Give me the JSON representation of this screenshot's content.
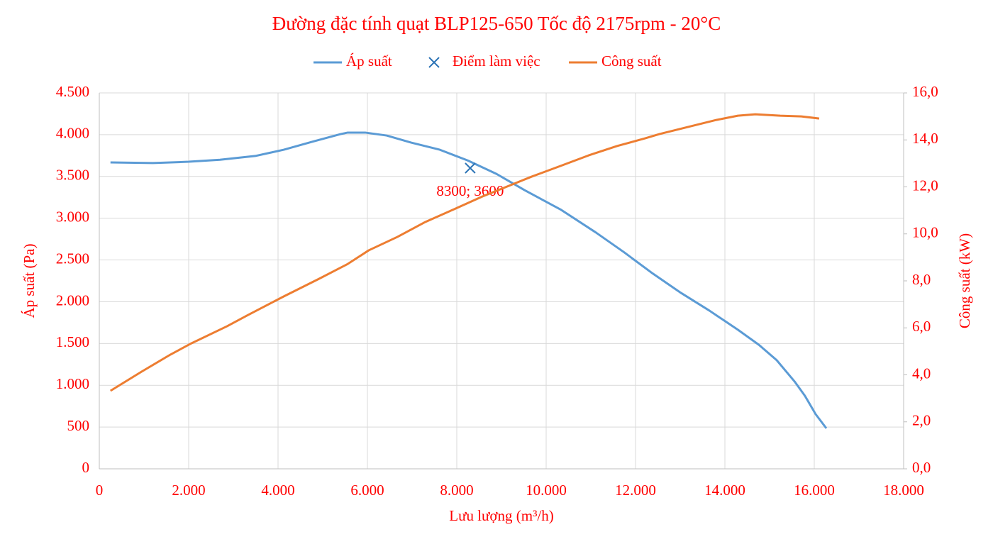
{
  "chart_data": {
    "type": "line",
    "title": "Đường đặc tính quạt BLP125-650 Tốc độ 2175rpm - 20°C",
    "x_label": "Lưu lượng (m³/h)",
    "y_label": "Áp suất (Pa)",
    "y2_label": "Công suất (kW)",
    "text_color": "#ff0000",
    "grid": true,
    "legend": "top",
    "xlim": [
      0,
      18000
    ],
    "xticks": [
      0,
      {
        "value": 2000,
        "label": "2.000"
      },
      {
        "value": 4000,
        "label": "4.000"
      },
      {
        "value": 6000,
        "label": "6.000"
      },
      {
        "value": 8000,
        "label": "8.000"
      },
      {
        "value": 10000,
        "label": "10.000"
      },
      {
        "value": 12000,
        "label": "12.000"
      },
      {
        "value": 14000,
        "label": "14.000"
      },
      {
        "value": 16000,
        "label": "16.000"
      },
      {
        "value": 18000,
        "label": "18.000"
      }
    ],
    "ylim": [
      0,
      4500
    ],
    "yticks": [
      0,
      500,
      {
        "value": 1000,
        "label": "1.000"
      },
      {
        "value": 1500,
        "label": "1.500"
      },
      {
        "value": 2000,
        "label": "2.000"
      },
      {
        "value": 2500,
        "label": "2.500"
      },
      {
        "value": 3000,
        "label": "3.000"
      },
      {
        "value": 3500,
        "label": "3.500"
      },
      {
        "value": 4000,
        "label": "4.000"
      },
      {
        "value": 4500,
        "label": "4.500"
      }
    ],
    "y2lim": [
      0,
      16
    ],
    "y2ticks": [
      {
        "value": 0,
        "label": "0,0"
      },
      {
        "value": 2,
        "label": "2,0"
      },
      {
        "value": 4,
        "label": "4,0"
      },
      {
        "value": 6,
        "label": "6,0"
      },
      {
        "value": 8,
        "label": "8,0"
      },
      {
        "value": 10,
        "label": "10,0"
      },
      {
        "value": 12,
        "label": "12,0"
      },
      {
        "value": 14,
        "label": "14,0"
      },
      {
        "value": 16,
        "label": "16,0"
      }
    ],
    "series": [
      {
        "name": "Áp suất",
        "type": "line",
        "color": "#5b9bd5",
        "x": [
          250,
          1200,
          2000,
          2700,
          3490,
          4130,
          4760,
          5400,
          5560,
          5950,
          6430,
          6980,
          7620,
          8250,
          8890,
          9520,
          10320,
          11110,
          11750,
          12380,
          13020,
          13650,
          14290,
          14760,
          15160,
          15560,
          15790,
          16030,
          16270
        ],
        "values": [
          3668,
          3660,
          3676,
          3700,
          3745,
          3820,
          3915,
          4007,
          4025,
          4025,
          3990,
          3905,
          3820,
          3690,
          3530,
          3335,
          3105,
          2830,
          2590,
          2340,
          2105,
          1895,
          1665,
          1485,
          1300,
          1045,
          875,
          655,
          485
        ]
      },
      {
        "name": "Điểm làm việc",
        "type": "scatter",
        "color": "#2e75b6",
        "x": [
          8300
        ],
        "values": [
          3600
        ],
        "value_labels": [
          "8300; 3600"
        ]
      },
      {
        "name": "Công suất",
        "type": "line",
        "color": "#ed7d31",
        "axis": "y2",
        "x": [
          250,
          950,
          1590,
          2060,
          2860,
          3330,
          4130,
          4920,
          5560,
          6030,
          6670,
          7300,
          7940,
          8570,
          9210,
          9680,
          10320,
          10950,
          11590,
          12220,
          12540,
          13170,
          13810,
          14290,
          14680,
          15240,
          15710,
          16110
        ],
        "values": [
          3.32,
          4.14,
          4.86,
          5.34,
          6.07,
          6.55,
          7.34,
          8.09,
          8.72,
          9.3,
          9.87,
          10.51,
          11.05,
          11.59,
          12.08,
          12.44,
          12.89,
          13.34,
          13.74,
          14.07,
          14.25,
          14.55,
          14.85,
          15.03,
          15.09,
          15.03,
          15.0,
          14.91
        ]
      }
    ]
  }
}
